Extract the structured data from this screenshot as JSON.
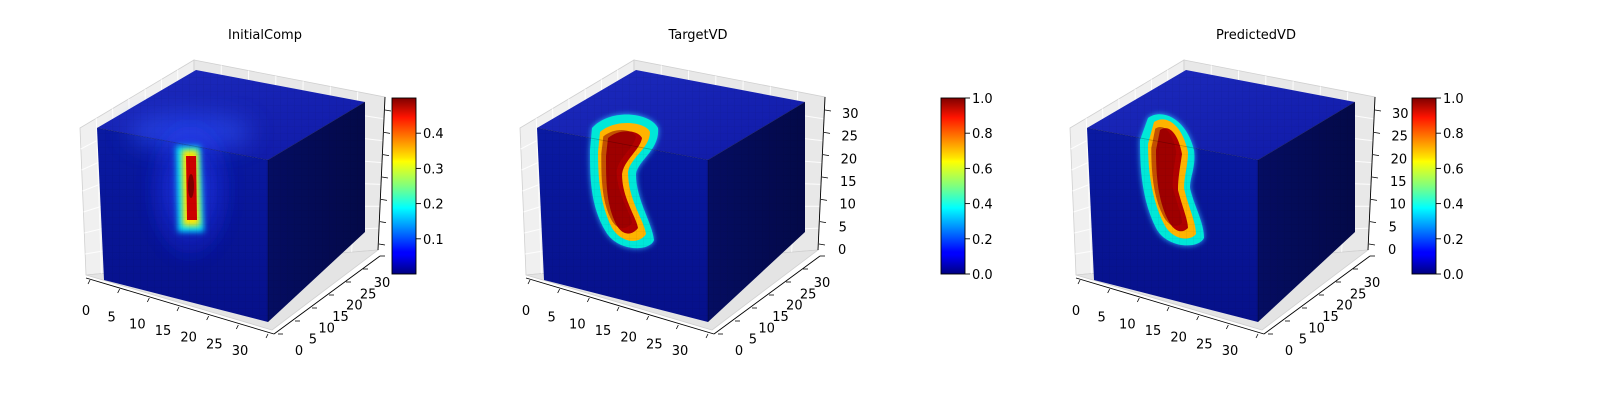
{
  "figure": {
    "panels": [
      {
        "title": "InitialComp"
      },
      {
        "title": "TargetVD"
      },
      {
        "title": "PredictedVD"
      }
    ]
  },
  "chart_data": [
    {
      "type": "voxel-3d",
      "title": "InitialComp",
      "colormap": "jet",
      "axes": {
        "x_ticks": [
          "0",
          "5",
          "10",
          "15",
          "20",
          "25",
          "30"
        ],
        "y_ticks": [
          "0",
          "5",
          "10",
          "15",
          "20",
          "25",
          "30"
        ],
        "z_ticks": [],
        "grid": true
      },
      "colorbar": {
        "min": 0.0,
        "max": 0.5,
        "ticks": [
          "0.1",
          "0.2",
          "0.3",
          "0.4"
        ],
        "tick_values": [
          0.1,
          0.2,
          0.3,
          0.4
        ]
      }
    },
    {
      "type": "voxel-3d",
      "title": "TargetVD",
      "colormap": "jet",
      "axes": {
        "x_ticks": [
          "0",
          "5",
          "10",
          "15",
          "20",
          "25",
          "30"
        ],
        "y_ticks": [
          "0",
          "5",
          "10",
          "15",
          "20",
          "25",
          "30"
        ],
        "z_ticks": [
          "0",
          "5",
          "10",
          "15",
          "20",
          "25",
          "30"
        ],
        "grid": true
      },
      "colorbar": {
        "min": 0.0,
        "max": 1.0,
        "ticks": [
          "0.0",
          "0.2",
          "0.4",
          "0.6",
          "0.8",
          "1.0"
        ],
        "tick_values": [
          0.0,
          0.2,
          0.4,
          0.6,
          0.8,
          1.0
        ]
      }
    },
    {
      "type": "voxel-3d",
      "title": "PredictedVD",
      "colormap": "jet",
      "axes": {
        "x_ticks": [
          "0",
          "5",
          "10",
          "15",
          "20",
          "25",
          "30"
        ],
        "y_ticks": [
          "0",
          "5",
          "10",
          "15",
          "20",
          "25",
          "30"
        ],
        "z_ticks": [
          "0",
          "5",
          "10",
          "15",
          "20",
          "25",
          "30"
        ],
        "grid": true
      },
      "colorbar": {
        "min": 0.0,
        "max": 1.0,
        "ticks": [
          "0.0",
          "0.2",
          "0.4",
          "0.6",
          "0.8",
          "1.0"
        ],
        "tick_values": [
          0.0,
          0.2,
          0.4,
          0.6,
          0.8,
          1.0
        ]
      }
    }
  ]
}
